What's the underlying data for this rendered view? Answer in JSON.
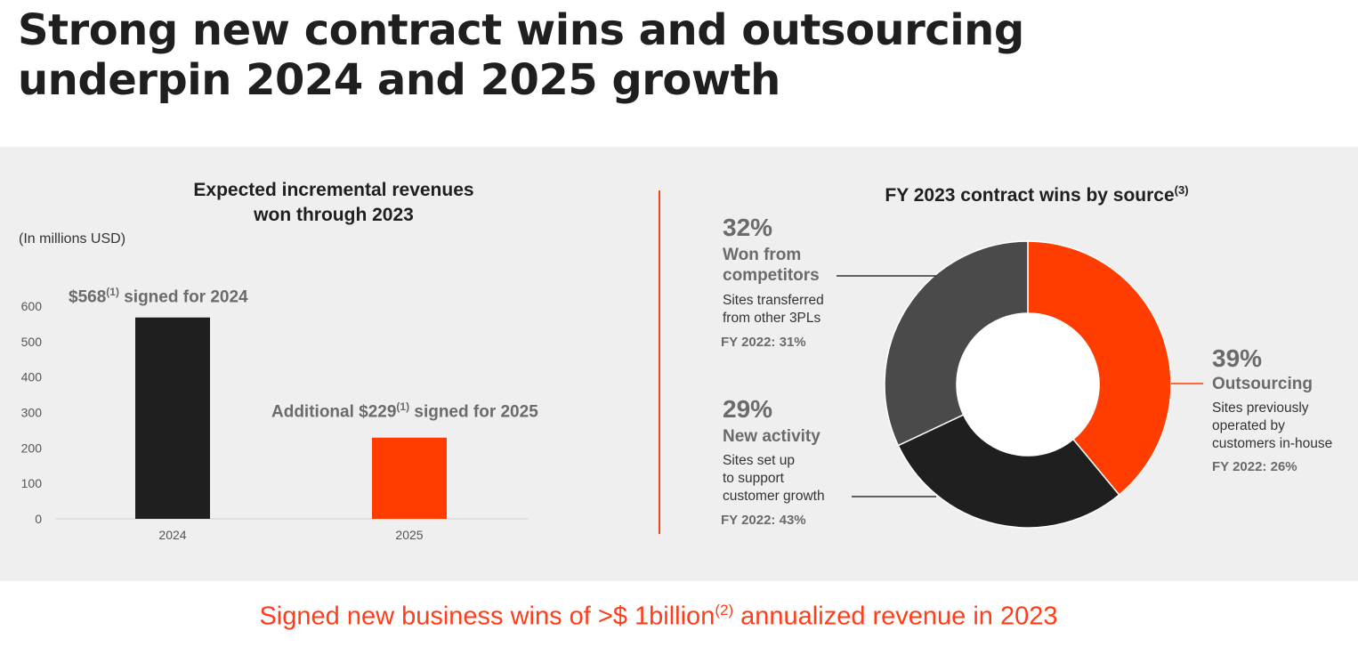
{
  "page_title": "Strong new contract wins and outsourcing underpin 2024 and 2025 growth",
  "colors": {
    "accent": "#ff3d00",
    "dark": "#1f1f1f",
    "mid": "#4a4a4a",
    "panel": "#efefef"
  },
  "left": {
    "title_line1": "Expected incremental revenues",
    "title_line2": "won through 2023",
    "unit": "(In millions USD)",
    "label_2024_prefix": "$568",
    "label_2024_sup": "(1)",
    "label_2024_suffix": " signed for 2024",
    "label_2025_prefix": "Additional $229",
    "label_2025_sup": "(1)",
    "label_2025_suffix": " signed for 2025"
  },
  "right": {
    "title": "FY 2023 contract wins by source",
    "title_sup": "(3)",
    "competitors": {
      "pct": "32%",
      "title_line1": "Won from",
      "title_line2": "competitors",
      "desc_line1": "Sites transferred",
      "desc_line2": "from other 3PLs",
      "fy": "FY 2022: 31%"
    },
    "new_activity": {
      "pct": "29%",
      "title": "New activity",
      "desc_line1": "Sites set up",
      "desc_line2": "to support",
      "desc_line3": "customer growth",
      "fy": "FY 2022: 43%"
    },
    "outsourcing": {
      "pct": "39%",
      "title": "Outsourcing",
      "desc_line1": "Sites previously",
      "desc_line2": "operated by",
      "desc_line3": "customers in-house",
      "fy": "FY 2022: 26%"
    }
  },
  "footer": {
    "prefix": "Signed new business wins of >$ 1billion",
    "sup": "(2)",
    "suffix": " annualized revenue in 2023"
  },
  "chart_data": [
    {
      "type": "bar",
      "title": "Expected incremental revenues won through 2023",
      "ylabel": "(In millions USD)",
      "categories": [
        "2024",
        "2025"
      ],
      "values": [
        568,
        229
      ],
      "colors": [
        "#1f1f1f",
        "#ff3d00"
      ],
      "ylim": [
        0,
        600
      ],
      "yticks": [
        0,
        100,
        200,
        300,
        400,
        500,
        600
      ],
      "grid": false
    },
    {
      "type": "pie",
      "title": "FY 2023 contract wins by source",
      "labels": [
        "Outsourcing",
        "New activity",
        "Won from competitors"
      ],
      "values": [
        39,
        29,
        32
      ],
      "colors": [
        "#ff3d00",
        "#1f1f1f",
        "#4a4a4a"
      ]
    }
  ]
}
